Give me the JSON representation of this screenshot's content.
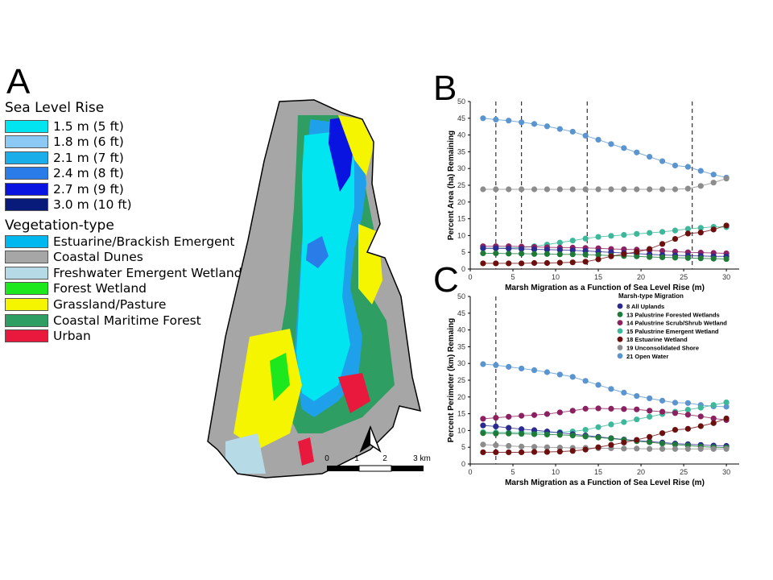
{
  "panels": {
    "a": "A",
    "b": "B",
    "c": "C"
  },
  "map": {
    "slr_legend": {
      "title": "Sea Level Rise",
      "items": [
        {
          "label": "1.5 m (5 ft)",
          "color": "#00e5f0"
        },
        {
          "label": "1.8 m (6 ft)",
          "color": "#8ccaf5"
        },
        {
          "label": "2.1 m (7 ft)",
          "color": "#19aeea"
        },
        {
          "label": "2.4 m (8 ft)",
          "color": "#2a7de8"
        },
        {
          "label": "2.7 m (9 ft)",
          "color": "#0a14e0"
        },
        {
          "label": "3.0 m (10 ft)",
          "color": "#081a7a"
        }
      ]
    },
    "veg_legend": {
      "title": "Vegetation-type",
      "items": [
        {
          "label": "Estuarine/Brackish Emergent",
          "color": "#00b8f0"
        },
        {
          "label": "Coastal Dunes",
          "color": "#a6a6a6"
        },
        {
          "label": "Freshwater Emergent Wetland",
          "color": "#b6dbe6"
        },
        {
          "label": "Forest Wetland",
          "color": "#1de81d"
        },
        {
          "label": "Grassland/Pasture",
          "color": "#f5f500"
        },
        {
          "label": "Coastal Maritime Forest",
          "color": "#2e9e62"
        },
        {
          "label": "Urban",
          "color": "#e8193c"
        }
      ]
    },
    "scale_bar": {
      "ticks": [
        "0",
        "1",
        "2",
        "3 km"
      ]
    }
  },
  "series_legend": {
    "title": "Marsh-type Migration",
    "items": [
      {
        "label": "8 All Uplands",
        "color": "#2b2b8f"
      },
      {
        "label": "13 Palustrine Forested Wetlands",
        "color": "#1f7a3a"
      },
      {
        "label": "14 Palustrine Scrub/Shrub Wetland",
        "color": "#8b2160"
      },
      {
        "label": "15 Palustrine Emergent Wetland",
        "color": "#3db89a"
      },
      {
        "label": "18 Estuarine Wetland",
        "color": "#6b0f0f"
      },
      {
        "label": "19 Unconsolidated Shore",
        "color": "#8c8c8c"
      },
      {
        "label": "21 Open Water",
        "color": "#5b95d0"
      }
    ]
  },
  "chart_data": [
    {
      "type": "line",
      "panel": "B",
      "xlabel": "Marsh Migration as a Function of Sea Level Rise (m)",
      "ylabel": "Percent Area (ha) Remaining",
      "xlim": [
        0,
        31.5
      ],
      "ylim": [
        0,
        50
      ],
      "xticks": [
        0,
        5,
        10,
        15,
        20,
        25,
        30
      ],
      "yticks": [
        0,
        5,
        10,
        15,
        20,
        25,
        30,
        35,
        40,
        45,
        50
      ],
      "vlines": [
        3,
        6,
        13.7,
        26
      ],
      "x": [
        1.5,
        3,
        4.5,
        6,
        7.5,
        9,
        10.5,
        12,
        13.5,
        15,
        16.5,
        18,
        19.5,
        21,
        22.5,
        24,
        25.5,
        27,
        28.5,
        30
      ],
      "series": [
        {
          "name": "21 Open Water",
          "values": [
            45,
            44.6,
            44.3,
            43.8,
            43.3,
            42.6,
            41.8,
            41,
            39.8,
            38.6,
            37.3,
            36.1,
            34.8,
            33.5,
            32.2,
            30.9,
            30.5,
            29.3,
            28.2,
            27.3
          ]
        },
        {
          "name": "19 Unconsolidated Shore",
          "values": [
            23.8,
            23.8,
            23.8,
            23.8,
            23.8,
            23.8,
            23.8,
            23.8,
            23.8,
            23.8,
            23.8,
            23.8,
            23.8,
            23.8,
            23.8,
            23.8,
            24,
            24.8,
            25.8,
            27
          ]
        },
        {
          "name": "15 Palustrine Emergent Wetland",
          "values": [
            6.2,
            6.2,
            6.3,
            6.4,
            6.8,
            7.3,
            7.9,
            8.5,
            9.1,
            9.6,
            9.9,
            10.2,
            10.5,
            10.8,
            11.1,
            11.5,
            12,
            12.3,
            12.6,
            12.5
          ]
        },
        {
          "name": "14 Palustrine Scrub/Shrub Wetland",
          "values": [
            6.8,
            6.8,
            6.8,
            6.7,
            6.6,
            6.5,
            6.4,
            6.4,
            6.3,
            6.2,
            6.0,
            5.9,
            5.8,
            5.6,
            5.4,
            5.2,
            5.0,
            4.9,
            4.8,
            4.7
          ]
        },
        {
          "name": "8 All Uplands",
          "values": [
            6.2,
            6.2,
            6.1,
            6.0,
            5.9,
            5.8,
            5.7,
            5.6,
            5.4,
            5.2,
            5.0,
            4.8,
            4.6,
            4.4,
            4.2,
            4.1,
            4.0,
            3.9,
            3.8,
            3.8
          ]
        },
        {
          "name": "13 Palustrine Forested Wetlands",
          "values": [
            4.7,
            4.7,
            4.6,
            4.6,
            4.5,
            4.5,
            4.4,
            4.4,
            4.3,
            4.2,
            4.0,
            3.9,
            3.8,
            3.6,
            3.5,
            3.4,
            3.3,
            3.2,
            3.1,
            3.0
          ]
        },
        {
          "name": "18 Estuarine Wetland",
          "values": [
            1.7,
            1.7,
            1.7,
            1.7,
            1.8,
            1.8,
            1.9,
            2.0,
            2.2,
            2.9,
            3.8,
            4.5,
            5.1,
            6.0,
            7.5,
            9.0,
            10.6,
            10.9,
            11.8,
            13
          ]
        }
      ]
    },
    {
      "type": "line",
      "panel": "C",
      "xlabel": "Marsh Migration as a Function of Sea Level Rise (m)",
      "ylabel": "Percent Perimeter (km) Remaing",
      "xlim": [
        0,
        31.5
      ],
      "ylim": [
        0,
        50
      ],
      "xticks": [
        0,
        5,
        10,
        15,
        20,
        25,
        30
      ],
      "yticks": [
        0,
        5,
        10,
        15,
        20,
        25,
        30,
        35,
        40,
        45,
        50
      ],
      "vlines": [
        3
      ],
      "x": [
        1.5,
        3,
        4.5,
        6,
        7.5,
        9,
        10.5,
        12,
        13.5,
        15,
        16.5,
        18,
        19.5,
        21,
        22.5,
        24,
        25.5,
        27,
        28.5,
        30
      ],
      "series": [
        {
          "name": "21 Open Water",
          "values": [
            29.8,
            29.5,
            29,
            28.5,
            28,
            27.4,
            26.7,
            26,
            24.8,
            23.6,
            22.4,
            21.3,
            20.3,
            19.6,
            18.9,
            18.3,
            18.2,
            17.6,
            17.2,
            17.1
          ]
        },
        {
          "name": "15 Palustrine Emergent Wetland",
          "values": [
            9.5,
            9.4,
            9.4,
            9.4,
            9.4,
            9.4,
            9.5,
            9.7,
            10.2,
            11,
            11.8,
            12.5,
            13.3,
            14.1,
            14.9,
            15.6,
            16.2,
            16.8,
            17.6,
            18.4
          ]
        },
        {
          "name": "14 Palustrine Scrub/Shrub Wetland",
          "values": [
            13.5,
            13.8,
            14.1,
            14.4,
            14.6,
            14.9,
            15.4,
            15.9,
            16.5,
            16.6,
            16.5,
            16.4,
            16.3,
            15.9,
            15.6,
            15.2,
            14.7,
            14.2,
            13.6,
            13.1
          ]
        },
        {
          "name": "8 All Uplands",
          "values": [
            11.5,
            11.2,
            10.8,
            10.4,
            10.1,
            9.7,
            9.3,
            8.9,
            8.5,
            8.1,
            7.7,
            7.3,
            7,
            6.7,
            6.4,
            6.1,
            5.9,
            5.7,
            5.5,
            5.4
          ]
        },
        {
          "name": "13 Palustrine Forested Wetlands",
          "values": [
            9.2,
            9.1,
            9.1,
            9,
            8.9,
            8.8,
            8.7,
            8.5,
            8.2,
            7.9,
            7.6,
            7.2,
            6.8,
            6.5,
            6.1,
            5.8,
            5.5,
            5.2,
            5,
            4.9
          ]
        },
        {
          "name": "19 Unconsolidated Shore",
          "values": [
            5.8,
            5.6,
            5.4,
            5.2,
            5.1,
            5,
            4.9,
            4.8,
            4.8,
            4.7,
            4.7,
            4.6,
            4.6,
            4.5,
            4.5,
            4.5,
            4.5,
            4.5,
            4.5,
            4.5
          ]
        },
        {
          "name": "18 Estuarine Wetland",
          "values": [
            3.5,
            3.5,
            3.5,
            3.5,
            3.6,
            3.6,
            3.7,
            3.9,
            4.3,
            5,
            5.7,
            6.4,
            7.2,
            8.1,
            9.2,
            10.2,
            10.5,
            11.3,
            12.2,
            13.6
          ]
        }
      ]
    }
  ]
}
